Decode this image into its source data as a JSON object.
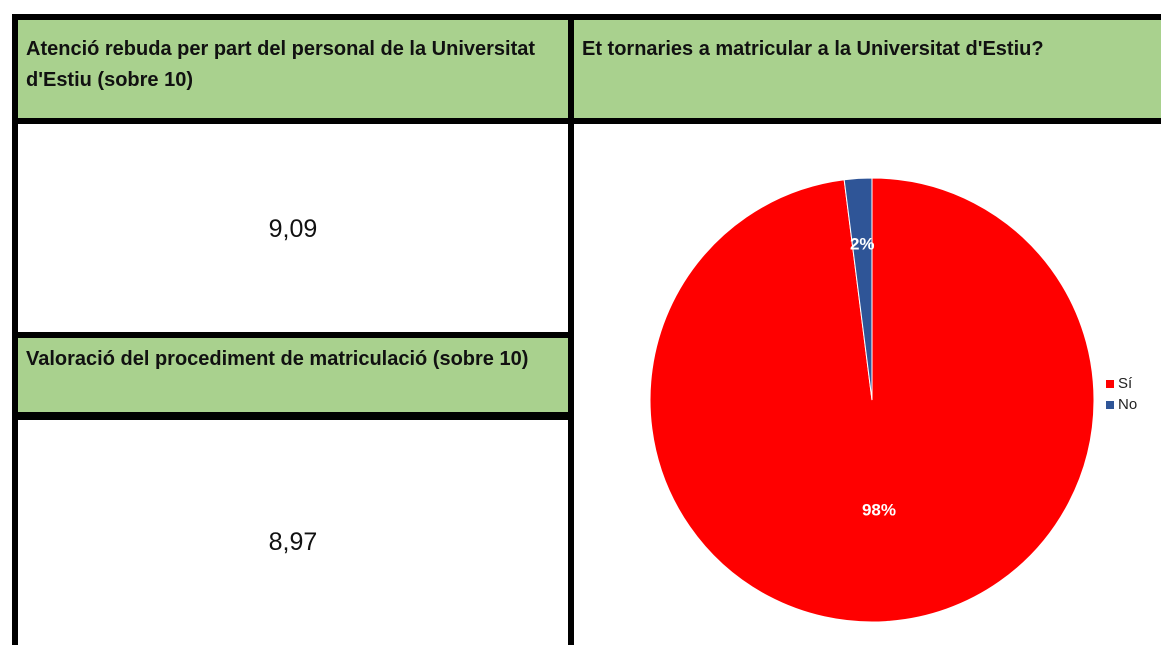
{
  "sections": [
    {
      "title": "Atenció rebuda per part del personal de la Universitat d'Estiu (sobre 10)",
      "value": "9,09"
    },
    {
      "title": "Valoració del procediment de matriculació (sobre 10)",
      "value": "8,97"
    }
  ],
  "chart_data": {
    "type": "pie",
    "title": "Et tornaries a matricular a la Universitat d'Estiu?",
    "categories": [
      "Sí",
      "No"
    ],
    "values": [
      98,
      2
    ],
    "value_labels": [
      "98%",
      "2%"
    ],
    "colors": [
      "#ff0000",
      "#2f5597"
    ],
    "legend": "right"
  }
}
